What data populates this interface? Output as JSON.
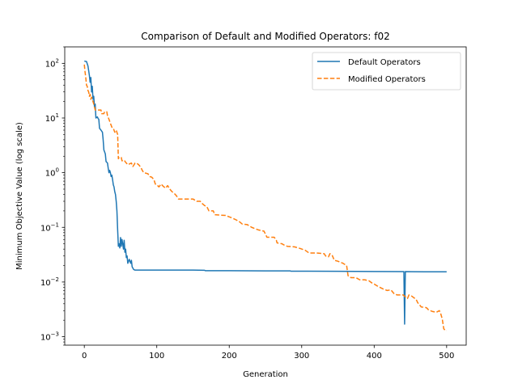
{
  "chart_data": {
    "type": "line",
    "title": "Comparison of Default and Modified Operators: f02",
    "xlabel": "Generation",
    "ylabel": "Minimum Objective Value (log scale)",
    "xlim": [
      -27,
      527
    ],
    "ylim": [
      0.0007,
      200
    ],
    "yscale": "log",
    "x_ticks": [
      0,
      100,
      200,
      300,
      400,
      500
    ],
    "y_ticks": [
      {
        "value": 100,
        "base": "10",
        "exp": "2"
      },
      {
        "value": 10,
        "base": "10",
        "exp": "1"
      },
      {
        "value": 1,
        "base": "10",
        "exp": "0"
      },
      {
        "value": 0.1,
        "base": "10",
        "exp": "−1"
      },
      {
        "value": 0.01,
        "base": "10",
        "exp": "−2"
      },
      {
        "value": 0.001,
        "base": "10",
        "exp": "−3"
      }
    ],
    "grid": false,
    "legend_position": "top-right",
    "series": [
      {
        "name": "Default Operators",
        "color": "#1f77b4",
        "dash": "solid",
        "points": [
          [
            0,
            110
          ],
          [
            3,
            108
          ],
          [
            5,
            90
          ],
          [
            7,
            60
          ],
          [
            8,
            45
          ],
          [
            9,
            55
          ],
          [
            10,
            30
          ],
          [
            11,
            38
          ],
          [
            12,
            22
          ],
          [
            13,
            25
          ],
          [
            14,
            16
          ],
          [
            15,
            18
          ],
          [
            16,
            10
          ],
          [
            18,
            10.5
          ],
          [
            19,
            9.8
          ],
          [
            20,
            9.5
          ],
          [
            21,
            6.5
          ],
          [
            23,
            6
          ],
          [
            25,
            5.5
          ],
          [
            26,
            4
          ],
          [
            27,
            2.6
          ],
          [
            28,
            2.4
          ],
          [
            29,
            2.2
          ],
          [
            30,
            1.6
          ],
          [
            31,
            1.55
          ],
          [
            32,
            1.5
          ],
          [
            33,
            1.2
          ],
          [
            34,
            1.0
          ],
          [
            35,
            1.1
          ],
          [
            36,
            1.0
          ],
          [
            37,
            0.85
          ],
          [
            38,
            0.9
          ],
          [
            39,
            0.75
          ],
          [
            40,
            0.6
          ],
          [
            41,
            0.55
          ],
          [
            42,
            0.45
          ],
          [
            43,
            0.4
          ],
          [
            44,
            0.3
          ],
          [
            45,
            0.2
          ],
          [
            46,
            0.09
          ],
          [
            47,
            0.045
          ],
          [
            48,
            0.05
          ],
          [
            49,
            0.042
          ],
          [
            50,
            0.065
          ],
          [
            51,
            0.045
          ],
          [
            52,
            0.06
          ],
          [
            53,
            0.05
          ],
          [
            54,
            0.04
          ],
          [
            55,
            0.058
          ],
          [
            56,
            0.035
          ],
          [
            57,
            0.04
          ],
          [
            58,
            0.028
          ],
          [
            59,
            0.03
          ],
          [
            60,
            0.022
          ],
          [
            62,
            0.026
          ],
          [
            64,
            0.022
          ],
          [
            65,
            0.025
          ],
          [
            66,
            0.019
          ],
          [
            68,
            0.017
          ],
          [
            70,
            0.0165
          ],
          [
            100,
            0.0165
          ],
          [
            150,
            0.0165
          ],
          [
            166,
            0.0164
          ],
          [
            167,
            0.0161
          ],
          [
            200,
            0.0161
          ],
          [
            250,
            0.016
          ],
          [
            284,
            0.016
          ],
          [
            285,
            0.0158
          ],
          [
            300,
            0.0158
          ],
          [
            350,
            0.0157
          ],
          [
            400,
            0.0156
          ],
          [
            440,
            0.0155
          ],
          [
            441,
            0.0155
          ],
          [
            442,
            0.0017
          ],
          [
            443,
            0.0155
          ],
          [
            470,
            0.0154
          ],
          [
            500,
            0.0154
          ]
        ]
      },
      {
        "name": "Modified Operators",
        "color": "#ff7f0e",
        "dash": "dashed",
        "points": [
          [
            0,
            95
          ],
          [
            1,
            70
          ],
          [
            2,
            55
          ],
          [
            3,
            40
          ],
          [
            4,
            38
          ],
          [
            5,
            32
          ],
          [
            6,
            30
          ],
          [
            7,
            25
          ],
          [
            8,
            27
          ],
          [
            9,
            22
          ],
          [
            10,
            24
          ],
          [
            12,
            20
          ],
          [
            13,
            18
          ],
          [
            14,
            16
          ],
          [
            15,
            14
          ],
          [
            20,
            14
          ],
          [
            23,
            14
          ],
          [
            24,
            12
          ],
          [
            27,
            12
          ],
          [
            28,
            13
          ],
          [
            31,
            13
          ],
          [
            32,
            11
          ],
          [
            34,
            9.5
          ],
          [
            36,
            8
          ],
          [
            38,
            6.8
          ],
          [
            40,
            6.5
          ],
          [
            42,
            5.5
          ],
          [
            44,
            6
          ],
          [
            46,
            5
          ],
          [
            47,
            1.8
          ],
          [
            48,
            1.9
          ],
          [
            51,
            1.9
          ],
          [
            52,
            1.65
          ],
          [
            55,
            1.7
          ],
          [
            57,
            1.55
          ],
          [
            60,
            1.4
          ],
          [
            65,
            1.5
          ],
          [
            67,
            1.3
          ],
          [
            68,
            1.35
          ],
          [
            70,
            1.5
          ],
          [
            72,
            1.5
          ],
          [
            75,
            1.4
          ],
          [
            78,
            1.25
          ],
          [
            80,
            1.1
          ],
          [
            82,
            1.0
          ],
          [
            85,
            0.98
          ],
          [
            88,
            0.95
          ],
          [
            90,
            0.85
          ],
          [
            93,
            0.83
          ],
          [
            96,
            0.75
          ],
          [
            98,
            0.62
          ],
          [
            100,
            0.6
          ],
          [
            103,
            0.55
          ],
          [
            106,
            0.62
          ],
          [
            108,
            0.58
          ],
          [
            112,
            0.52
          ],
          [
            115,
            0.58
          ],
          [
            118,
            0.5
          ],
          [
            121,
            0.45
          ],
          [
            124,
            0.42
          ],
          [
            127,
            0.38
          ],
          [
            130,
            0.33
          ],
          [
            140,
            0.33
          ],
          [
            150,
            0.33
          ],
          [
            155,
            0.3
          ],
          [
            160,
            0.3
          ],
          [
            163,
            0.27
          ],
          [
            166,
            0.25
          ],
          [
            169,
            0.24
          ],
          [
            172,
            0.2
          ],
          [
            178,
            0.2
          ],
          [
            180,
            0.17
          ],
          [
            195,
            0.165
          ],
          [
            203,
            0.15
          ],
          [
            208,
            0.14
          ],
          [
            213,
            0.13
          ],
          [
            218,
            0.115
          ],
          [
            225,
            0.112
          ],
          [
            231,
            0.1
          ],
          [
            240,
            0.09
          ],
          [
            248,
            0.085
          ],
          [
            250,
            0.075
          ],
          [
            252,
            0.066
          ],
          [
            262,
            0.066
          ],
          [
            265,
            0.058
          ],
          [
            266,
            0.052
          ],
          [
            273,
            0.05
          ],
          [
            275,
            0.048
          ],
          [
            280,
            0.045
          ],
          [
            290,
            0.044
          ],
          [
            298,
            0.041
          ],
          [
            305,
            0.038
          ],
          [
            310,
            0.034
          ],
          [
            320,
            0.034
          ],
          [
            331,
            0.033
          ],
          [
            333,
            0.03
          ],
          [
            337,
            0.029
          ],
          [
            339,
            0.033
          ],
          [
            342,
            0.031
          ],
          [
            345,
            0.025
          ],
          [
            350,
            0.024
          ],
          [
            357,
            0.022
          ],
          [
            362,
            0.02
          ],
          [
            364,
            0.013
          ],
          [
            368,
            0.012
          ],
          [
            375,
            0.012
          ],
          [
            380,
            0.011
          ],
          [
            387,
            0.011
          ],
          [
            393,
            0.0105
          ],
          [
            397,
            0.0096
          ],
          [
            400,
            0.0092
          ],
          [
            406,
            0.0082
          ],
          [
            412,
            0.0075
          ],
          [
            418,
            0.007
          ],
          [
            423,
            0.0072
          ],
          [
            428,
            0.006
          ],
          [
            432,
            0.0058
          ],
          [
            440,
            0.0058
          ],
          [
            446,
            0.005
          ],
          [
            448,
            0.0058
          ],
          [
            452,
            0.0055
          ],
          [
            458,
            0.0048
          ],
          [
            460,
            0.0042
          ],
          [
            465,
            0.0035
          ],
          [
            472,
            0.0034
          ],
          [
            475,
            0.0031
          ],
          [
            480,
            0.0029
          ],
          [
            486,
            0.0028
          ],
          [
            490,
            0.003
          ],
          [
            492,
            0.0026
          ],
          [
            494,
            0.0021
          ],
          [
            496,
            0.0014
          ],
          [
            498,
            0.0013
          ],
          [
            500,
            0.0013
          ]
        ]
      }
    ]
  }
}
